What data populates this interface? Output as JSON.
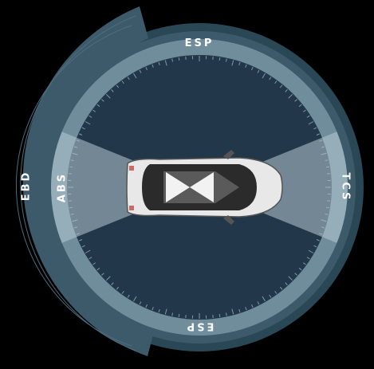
{
  "labels": {
    "top": "ESP",
    "bottom": "ESP",
    "left_inner": "ABS",
    "left_outer": "EBD",
    "right": "TCS"
  },
  "icons": {
    "vehicle": "car-top-view-icon"
  },
  "colors": {
    "background": "#000000",
    "outer_band": "#3c5a69",
    "inner_band": "#6f8d9b",
    "dial_face": "#22384a",
    "sensor_beam": "#b6c9d3",
    "tick": "#7f98a6"
  }
}
